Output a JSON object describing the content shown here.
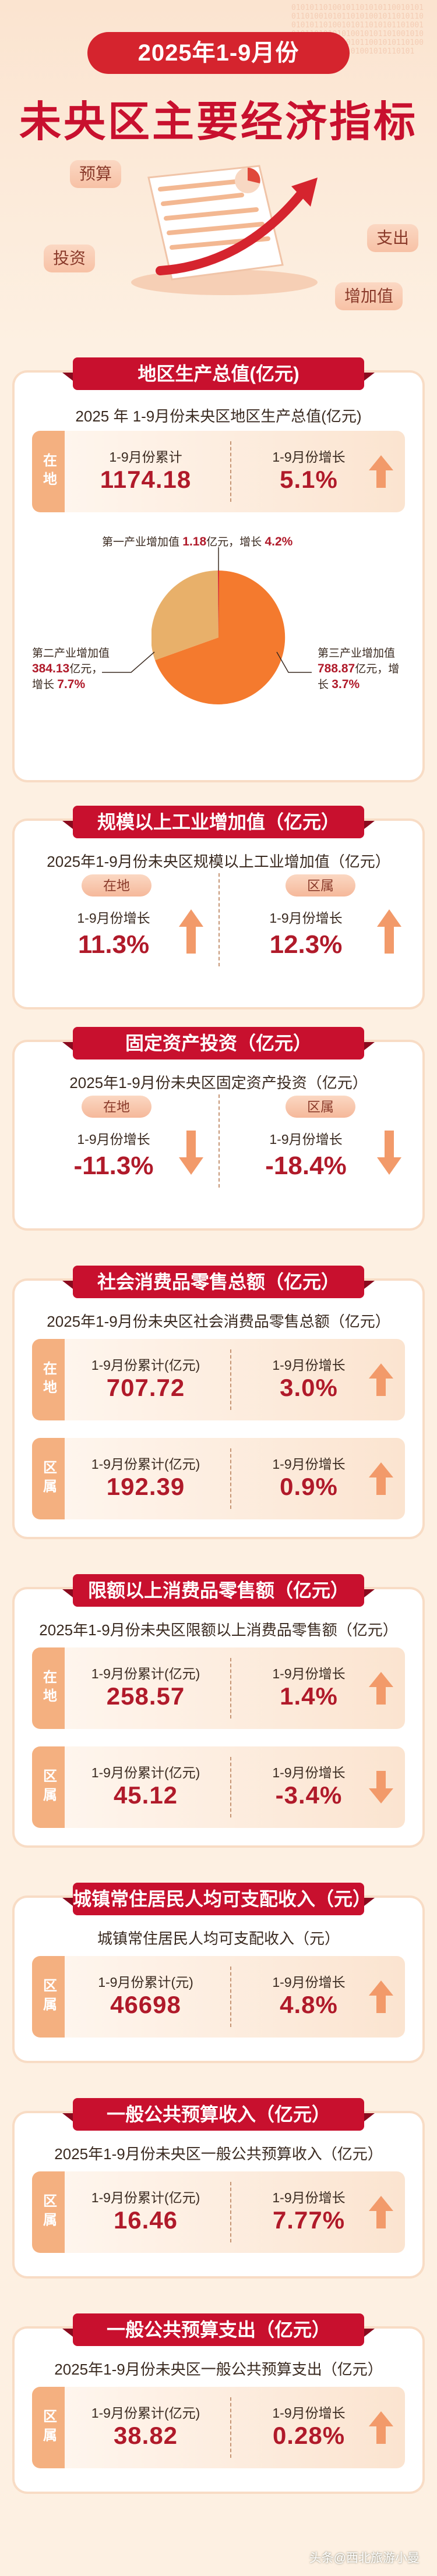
{
  "hero": {
    "date_badge": "2025年1-9月份",
    "title": "未央区主要经济指标",
    "tags": {
      "budget": "预算",
      "spend": "支出",
      "invest": "投资",
      "added": "增加值"
    }
  },
  "gdp": {
    "title": "地区生产总值(亿元)",
    "subtitle": "2025 年 1-9月份未央区地区生产总值(亿元)",
    "tag": "在地",
    "cum_label": "1-9月份累计",
    "cum_value": "1174.18",
    "growth_label": "1-9月份增长",
    "growth_value": "5.1%",
    "pie": {
      "primary": {
        "text_a": "第一产业增加值 ",
        "value": "1.18",
        "text_b": "亿元，增长 ",
        "growth": "4.2%"
      },
      "secondary": {
        "line1": "第二产业增加值",
        "value": "384.13",
        "text_b": "亿元，",
        "line3": "增长 ",
        "growth": "7.7%"
      },
      "tertiary": {
        "line1": "第三产业增加值",
        "value": "788.87",
        "text_b": "亿元，增",
        "line3": "长 ",
        "growth": "3.7%"
      }
    }
  },
  "industry": {
    "title": "规模以上工业增加值（亿元）",
    "subtitle": "2025年1-9月份未央区规模以上工业增加值（亿元）",
    "left_pill": "在地",
    "right_pill": "区属",
    "left_label": "1-9月份增长",
    "left_value": "11.3%",
    "right_label": "1-9月份增长",
    "right_value": "12.3%"
  },
  "fixed": {
    "title": "固定资产投资（亿元）",
    "subtitle": "2025年1-9月份未央区固定资产投资（亿元）",
    "left_pill": "在地",
    "right_pill": "区属",
    "left_label": "1-9月份增长",
    "left_value": "-11.3%",
    "right_label": "1-9月份增长",
    "right_value": "-18.4%"
  },
  "retail": {
    "title": "社会消费品零售总额（亿元）",
    "subtitle": "2025年1-9月份未央区社会消费品零售总额（亿元）",
    "rows": [
      {
        "tag": "在地",
        "cum_label": "1-9月份累计(亿元)",
        "cum_value": "707.72",
        "growth_label": "1-9月份增长",
        "growth_value": "3.0%"
      },
      {
        "tag": "区属",
        "cum_label": "1-9月份累计(亿元)",
        "cum_value": "192.39",
        "growth_label": "1-9月份增长",
        "growth_value": "0.9%"
      }
    ]
  },
  "retail_above": {
    "title": "限额以上消费品零售额（亿元）",
    "subtitle": "2025年1-9月份未央区限额以上消费品零售额（亿元）",
    "rows": [
      {
        "tag": "在地",
        "cum_label": "1-9月份累计(亿元)",
        "cum_value": "258.57",
        "growth_label": "1-9月份增长",
        "growth_value": "1.4%"
      },
      {
        "tag": "区属",
        "cum_label": "1-9月份累计(亿元)",
        "cum_value": "45.12",
        "growth_label": "1-9月份增长",
        "growth_value": "-3.4%"
      }
    ]
  },
  "income": {
    "title": "城镇常住居民人均可支配收入（元）",
    "subtitle": "城镇常住居民人均可支配收入（元）",
    "tag": "区属",
    "cum_label": "1-9月份累计(元)",
    "cum_value": "46698",
    "growth_label": "1-9月份增长",
    "growth_value": "4.8%"
  },
  "revenue": {
    "title": "一般公共预算收入（亿元）",
    "subtitle": "2025年1-9月份未央区一般公共预算收入（亿元）",
    "tag": "区属",
    "cum_label": "1-9月份累计(亿元)",
    "cum_value": "16.46",
    "growth_label": "1-9月份增长",
    "growth_value": "7.77%"
  },
  "expense": {
    "title": "一般公共预算支出（亿元）",
    "subtitle": "2025年1-9月份未央区一般公共预算支出（亿元）",
    "tag": "区属",
    "cum_label": "1-9月份累计(亿元)",
    "cum_value": "38.82",
    "growth_label": "1-9月份增长",
    "growth_value": "0.28%"
  },
  "footer": "头条@西北旅游小曼",
  "colors": {
    "red": "#c8102e",
    "value": "#b01a2a",
    "pie_orange": "#f47a2e",
    "pie_tan": "#e8b06a",
    "pie_red": "#d5242e",
    "card_tag": "#f4b080"
  }
}
